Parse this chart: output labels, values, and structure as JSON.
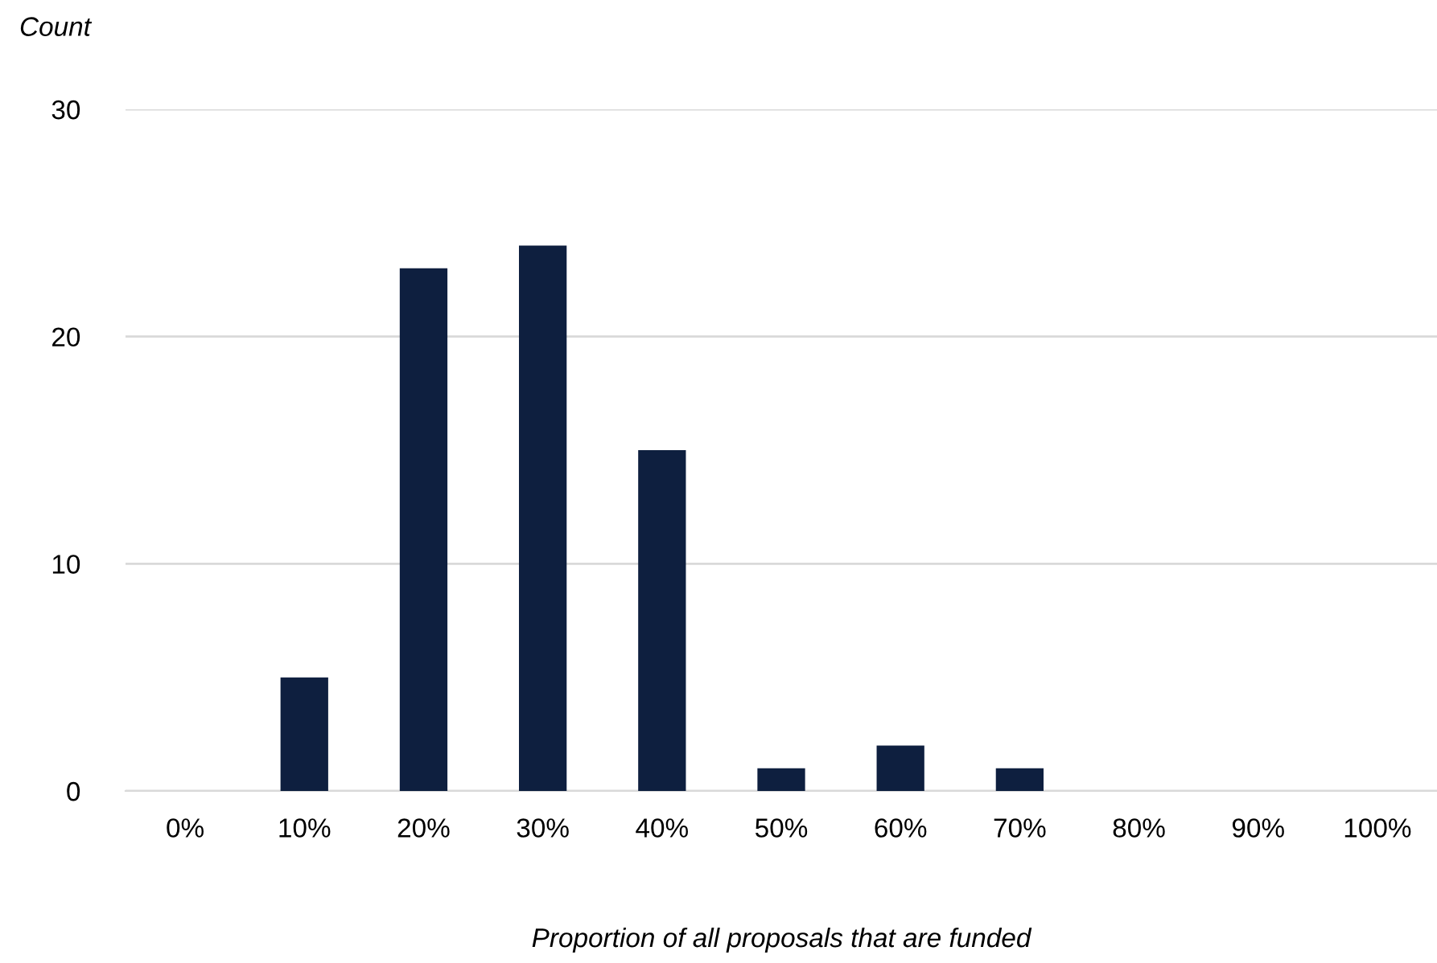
{
  "chart_data": {
    "type": "bar",
    "ylabel": "Count",
    "xlabel": "Proportion of all proposals that are funded",
    "categories": [
      "0%",
      "10%",
      "20%",
      "30%",
      "40%",
      "50%",
      "60%",
      "70%",
      "80%",
      "90%",
      "100%"
    ],
    "values": [
      0,
      5,
      23,
      24,
      15,
      1,
      2,
      1,
      0,
      0,
      0
    ],
    "color": "#0e1f3f",
    "ylim": [
      0,
      30
    ],
    "yticks": [
      0,
      10,
      20,
      30
    ],
    "grid": "y",
    "legend": false
  }
}
